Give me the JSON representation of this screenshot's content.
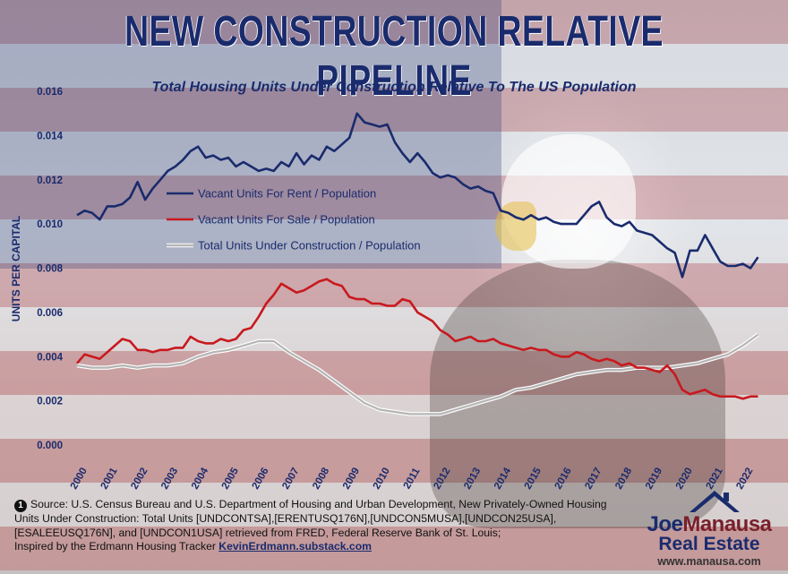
{
  "header": {
    "title": "NEW CONSTRUCTION RELATIVE PIPELINE",
    "subtitle": "Total Housing Units Under Construction Relative To The US Population"
  },
  "chart_data": {
    "type": "line",
    "ylabel": "UNITS PER CAPITAL",
    "xlabel": "",
    "ylim": [
      0,
      0.016
    ],
    "xlim": [
      2000,
      2022.75
    ],
    "y_ticks": [
      "0.000",
      "0.002",
      "0.004",
      "0.006",
      "0.008",
      "0.010",
      "0.012",
      "0.014",
      "0.016"
    ],
    "x_ticks": [
      "2000",
      "2001",
      "2002",
      "2003",
      "2004",
      "2005",
      "2006",
      "2007",
      "2008",
      "2009",
      "2010",
      "2011",
      "2012",
      "2013",
      "2014",
      "2015",
      "2016",
      "2017",
      "2018",
      "2019",
      "2020",
      "2021",
      "2022"
    ],
    "legend_position": "top-left",
    "grid": false,
    "series": [
      {
        "name": "Vacant Units For Rent / Population",
        "color": "#1a2b6d",
        "x": [
          2000,
          2000.25,
          2000.5,
          2000.75,
          2001,
          2001.25,
          2001.5,
          2001.75,
          2002,
          2002.25,
          2002.5,
          2002.75,
          2003,
          2003.25,
          2003.5,
          2003.75,
          2004,
          2004.25,
          2004.5,
          2004.75,
          2005,
          2005.25,
          2005.5,
          2005.75,
          2006,
          2006.25,
          2006.5,
          2006.75,
          2007,
          2007.25,
          2007.5,
          2007.75,
          2008,
          2008.25,
          2008.5,
          2008.75,
          2009,
          2009.25,
          2009.5,
          2009.75,
          2010,
          2010.25,
          2010.5,
          2010.75,
          2011,
          2011.25,
          2011.5,
          2011.75,
          2012,
          2012.25,
          2012.5,
          2012.75,
          2013,
          2013.25,
          2013.5,
          2013.75,
          2014,
          2014.25,
          2014.5,
          2014.75,
          2015,
          2015.25,
          2015.5,
          2015.75,
          2016,
          2016.25,
          2016.5,
          2016.75,
          2017,
          2017.25,
          2017.5,
          2017.75,
          2018,
          2018.25,
          2018.5,
          2018.75,
          2019,
          2019.25,
          2019.5,
          2019.75,
          2020,
          2020.25,
          2020.5,
          2020.75,
          2021,
          2021.25,
          2021.5,
          2021.75,
          2022,
          2022.25,
          2022.5
        ],
        "values": [
          0.0104,
          0.0106,
          0.0105,
          0.0102,
          0.0108,
          0.0108,
          0.0109,
          0.0112,
          0.0119,
          0.0111,
          0.0116,
          0.012,
          0.0124,
          0.0126,
          0.0129,
          0.0133,
          0.0135,
          0.013,
          0.0131,
          0.0129,
          0.013,
          0.0126,
          0.0128,
          0.0126,
          0.0124,
          0.0125,
          0.0124,
          0.0128,
          0.0126,
          0.0132,
          0.0127,
          0.0131,
          0.0129,
          0.0135,
          0.0133,
          0.0136,
          0.0139,
          0.015,
          0.0146,
          0.0145,
          0.0144,
          0.0145,
          0.0137,
          0.0132,
          0.0128,
          0.0132,
          0.0128,
          0.0123,
          0.0121,
          0.0122,
          0.0121,
          0.0118,
          0.0116,
          0.0117,
          0.0115,
          0.0114,
          0.0106,
          0.0105,
          0.0103,
          0.0102,
          0.0104,
          0.0102,
          0.0103,
          0.0101,
          0.01,
          0.01,
          0.01,
          0.0104,
          0.0108,
          0.011,
          0.0103,
          0.01,
          0.0099,
          0.0101,
          0.0097,
          0.0096,
          0.0095,
          0.0092,
          0.0089,
          0.0087,
          0.0076,
          0.0088,
          0.0088,
          0.0095,
          0.0089,
          0.0083,
          0.0081,
          0.0081,
          0.0082,
          0.008,
          0.0085
        ]
      },
      {
        "name": "Vacant Units For Sale / Population",
        "color": "#c8191e",
        "x": [
          2000,
          2000.25,
          2000.5,
          2000.75,
          2001,
          2001.25,
          2001.5,
          2001.75,
          2002,
          2002.25,
          2002.5,
          2002.75,
          2003,
          2003.25,
          2003.5,
          2003.75,
          2004,
          2004.25,
          2004.5,
          2004.75,
          2005,
          2005.25,
          2005.5,
          2005.75,
          2006,
          2006.25,
          2006.5,
          2006.75,
          2007,
          2007.25,
          2007.5,
          2007.75,
          2008,
          2008.25,
          2008.5,
          2008.75,
          2009,
          2009.25,
          2009.5,
          2009.75,
          2010,
          2010.25,
          2010.5,
          2010.75,
          2011,
          2011.25,
          2011.5,
          2011.75,
          2012,
          2012.25,
          2012.5,
          2012.75,
          2013,
          2013.25,
          2013.5,
          2013.75,
          2014,
          2014.25,
          2014.5,
          2014.75,
          2015,
          2015.25,
          2015.5,
          2015.75,
          2016,
          2016.25,
          2016.5,
          2016.75,
          2017,
          2017.25,
          2017.5,
          2017.75,
          2018,
          2018.25,
          2018.5,
          2018.75,
          2019,
          2019.25,
          2019.5,
          2019.75,
          2020,
          2020.25,
          2020.5,
          2020.75,
          2021,
          2021.25,
          2021.5,
          2021.75,
          2022,
          2022.25,
          2022.5
        ],
        "values": [
          0.0037,
          0.0041,
          0.004,
          0.0039,
          0.0042,
          0.0045,
          0.0048,
          0.0047,
          0.0043,
          0.0043,
          0.0042,
          0.0043,
          0.0043,
          0.0044,
          0.0044,
          0.0049,
          0.0047,
          0.0046,
          0.0046,
          0.0048,
          0.0047,
          0.0048,
          0.0052,
          0.0053,
          0.0058,
          0.0064,
          0.0068,
          0.0073,
          0.0071,
          0.0069,
          0.007,
          0.0072,
          0.0074,
          0.0075,
          0.0073,
          0.0072,
          0.0067,
          0.0066,
          0.0066,
          0.0064,
          0.0064,
          0.0063,
          0.0063,
          0.0066,
          0.0065,
          0.006,
          0.0058,
          0.0056,
          0.0052,
          0.005,
          0.0047,
          0.0048,
          0.0049,
          0.0047,
          0.0047,
          0.0048,
          0.0046,
          0.0045,
          0.0044,
          0.0043,
          0.0044,
          0.0043,
          0.0043,
          0.0041,
          0.004,
          0.004,
          0.0042,
          0.0041,
          0.0039,
          0.0038,
          0.0039,
          0.0038,
          0.0036,
          0.0037,
          0.0035,
          0.0035,
          0.0034,
          0.0033,
          0.0036,
          0.0032,
          0.0025,
          0.0023,
          0.0024,
          0.0025,
          0.0023,
          0.0022,
          0.0022,
          0.0022,
          0.0021,
          0.0022,
          0.0022
        ]
      },
      {
        "name": "Total Units Under Construction / Population",
        "color": "#b5b5b5",
        "x": [
          2000,
          2000.5,
          2001,
          2001.5,
          2002,
          2002.5,
          2003,
          2003.5,
          2004,
          2004.5,
          2005,
          2005.5,
          2006,
          2006.5,
          2007,
          2007.5,
          2008,
          2008.5,
          2009,
          2009.5,
          2010,
          2010.5,
          2011,
          2011.5,
          2012,
          2012.5,
          2013,
          2013.5,
          2014,
          2014.5,
          2015,
          2015.5,
          2016,
          2016.5,
          2017,
          2017.5,
          2018,
          2018.5,
          2019,
          2019.5,
          2020,
          2020.5,
          2021,
          2021.5,
          2022,
          2022.5
        ],
        "values": [
          0.0036,
          0.0035,
          0.0035,
          0.0036,
          0.0035,
          0.0036,
          0.0036,
          0.0037,
          0.004,
          0.0042,
          0.0043,
          0.0045,
          0.0047,
          0.0047,
          0.0042,
          0.0038,
          0.0034,
          0.0029,
          0.0024,
          0.0019,
          0.0016,
          0.0015,
          0.0014,
          0.0014,
          0.0014,
          0.0016,
          0.0018,
          0.002,
          0.0022,
          0.0025,
          0.0026,
          0.0028,
          0.003,
          0.0032,
          0.0033,
          0.0034,
          0.0034,
          0.0035,
          0.0035,
          0.0035,
          0.0036,
          0.0037,
          0.0039,
          0.0041,
          0.0045,
          0.005
        ]
      }
    ]
  },
  "source": {
    "number": "1",
    "text": "Source: U.S. Census Bureau and U.S. Department of Housing and Urban Development, New Privately-Owned Housing Units Under Construction: Total Units [UNDCONTSA],[ERENTUSQ176N],[UNDCON5MUSA],[UNDCON25USA], [ESALEEUSQ176N], and [UNDCON1USA] retrieved from FRED, Federal Reserve Bank of St. Louis;",
    "inspired_text": "Inspired by the Erdmann Housing Tracker",
    "link_text": "KevinErdmann.substack.com"
  },
  "logo": {
    "name_part1": "Joe",
    "name_part2": "Manausa",
    "subtitle": "Real Estate",
    "url": "www.manausa.com"
  },
  "colors": {
    "title": "#1a2b6d",
    "rent_line": "#1a2b6d",
    "sale_line": "#c8191e",
    "construction_line": "#b5b5b5"
  }
}
